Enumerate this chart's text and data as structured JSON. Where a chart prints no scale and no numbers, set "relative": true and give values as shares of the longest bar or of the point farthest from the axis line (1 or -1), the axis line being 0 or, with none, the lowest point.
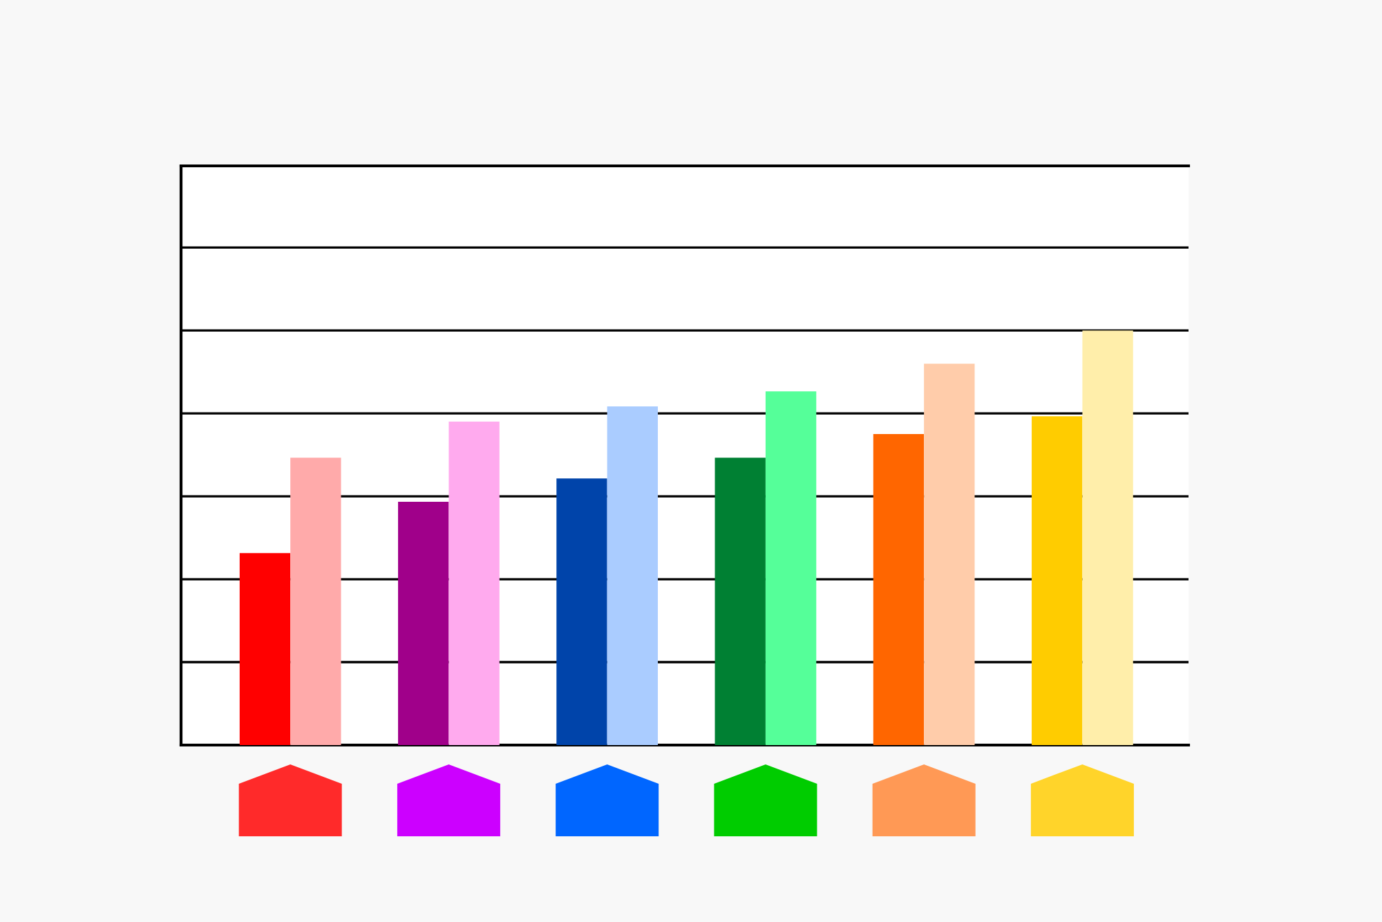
{
  "chart_data": {
    "type": "bar",
    "relative": true,
    "grid": "y",
    "categories": [
      null,
      null,
      null,
      null,
      null,
      null
    ],
    "series": [
      {
        "colors": [
          "#ff0000",
          "#a0008a",
          "#0044aa",
          "#008033",
          "#ff6600",
          "#ffcc00"
        ],
        "values": [
          0.463,
          0.587,
          0.643,
          0.693,
          0.75,
          0.793
        ]
      },
      {
        "colors": [
          "#ffaaaa",
          "#ffaaee",
          "#aaccff",
          "#55ff99",
          "#ffccaa",
          "#ffeeaa"
        ],
        "values": [
          0.693,
          0.78,
          0.817,
          0.853,
          0.92,
          1
        ]
      }
    ]
  }
}
